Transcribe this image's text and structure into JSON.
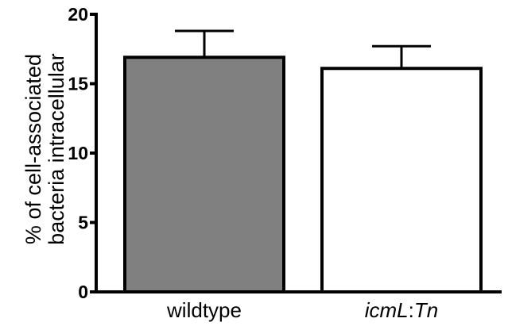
{
  "chart_data": {
    "type": "bar",
    "categories": [
      "wildtype",
      "icmL:Tn"
    ],
    "category_labels": [
      [
        {
          "text": "wildtype",
          "italic": false
        }
      ],
      [
        {
          "text": "icmL",
          "italic": true
        },
        {
          "text": ":",
          "italic": false
        },
        {
          "text": "Tn",
          "italic": true
        }
      ]
    ],
    "values": [
      16.9,
      16.1
    ],
    "error_upper": [
      1.9,
      1.6
    ],
    "bar_colors": [
      "#808080",
      "#ffffff"
    ],
    "edge_color": "#000000",
    "ylabel_lines": [
      "% of cell-associated",
      "bacteria intracellular"
    ],
    "xlabel": "",
    "title": "",
    "ylim": [
      0,
      20
    ],
    "yticks": [
      0,
      5,
      10,
      15,
      20
    ],
    "ytick_labels": [
      "0",
      "5",
      "10",
      "15",
      "20"
    ],
    "grid": false,
    "legend": "none"
  }
}
